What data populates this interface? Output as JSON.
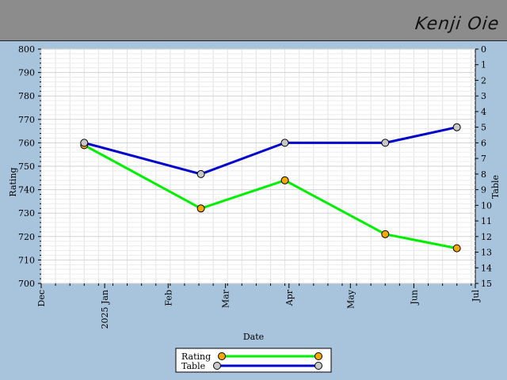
{
  "header": {
    "player_name": "Kenji Oie"
  },
  "chart_data": {
    "type": "line",
    "xlabel": "Date",
    "ylabel_left": "Rating",
    "ylabel_right": "Table",
    "x_ticks": [
      "Dec",
      "2025 Jan",
      "Feb",
      "Mar",
      "Apr",
      "May",
      "Jun",
      "Jul"
    ],
    "x_tick_dates": [
      "2024-12-01",
      "2025-01-01",
      "2025-02-01",
      "2025-03-01",
      "2025-04-01",
      "2025-05-01",
      "2025-06-01",
      "2025-07-01"
    ],
    "xlim": [
      "2024-12-01",
      "2025-07-01"
    ],
    "ylim_left": [
      700,
      800
    ],
    "ylim_right": [
      0,
      15
    ],
    "right_axis_inverted": true,
    "grid": true,
    "legend_placement": "bottom-center",
    "series": [
      {
        "name": "Rating",
        "axis": "left",
        "color": "#00ee00",
        "marker_color": "#f5a800",
        "x": [
          "2024-12-22",
          "2025-02-17",
          "2025-03-30",
          "2025-05-18",
          "2025-06-22"
        ],
        "values": [
          759,
          732,
          744,
          721,
          715
        ]
      },
      {
        "name": "Table",
        "axis": "right",
        "color": "#0000cc",
        "marker_color": "#c8c8c8",
        "x": [
          "2024-12-22",
          "2025-02-17",
          "2025-03-30",
          "2025-05-18",
          "2025-06-22"
        ],
        "values": [
          6,
          8,
          6,
          6,
          5
        ]
      }
    ]
  }
}
